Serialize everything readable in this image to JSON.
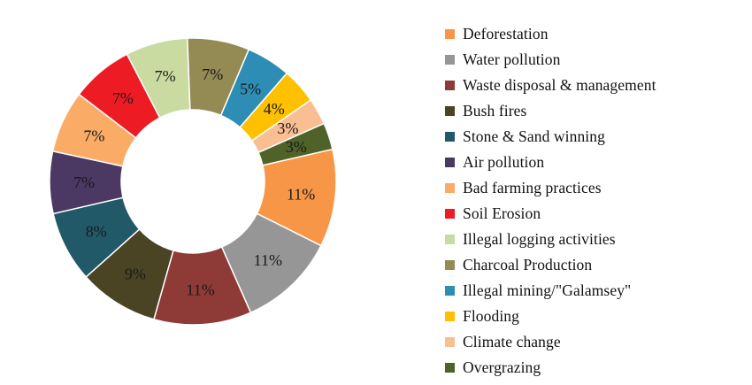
{
  "chart_data": {
    "type": "pie",
    "variant": "donut",
    "title": "",
    "categories": [
      "Deforestation",
      "Water pollution",
      "Waste disposal & management",
      "Bush fires",
      "Stone & Sand winning",
      "Air pollution",
      "Bad farming practices",
      "Soil Erosion",
      "Illegal logging activities",
      "Charcoal Production",
      "Illegal mining/\"Galamsey\"",
      "Flooding",
      "Climate change",
      "Overgrazing"
    ],
    "values": [
      11,
      11,
      11,
      9,
      8,
      7,
      7,
      7,
      7,
      7,
      5,
      4,
      3,
      3
    ],
    "labels": [
      "11%",
      "11%",
      "11%",
      "9%",
      "8%",
      "7%",
      "7%",
      "7%",
      "7%",
      "7%",
      "5%",
      "4%",
      "3%",
      "3%"
    ],
    "colors": [
      "#F79646",
      "#969696",
      "#8E3A37",
      "#4A4425",
      "#215968",
      "#4B3863",
      "#FAAB66",
      "#ED1C24",
      "#C9DBA0",
      "#948A54",
      "#2E8DB5",
      "#FFC000",
      "#F9BF93",
      "#4F6228"
    ],
    "legend_position": "right"
  }
}
